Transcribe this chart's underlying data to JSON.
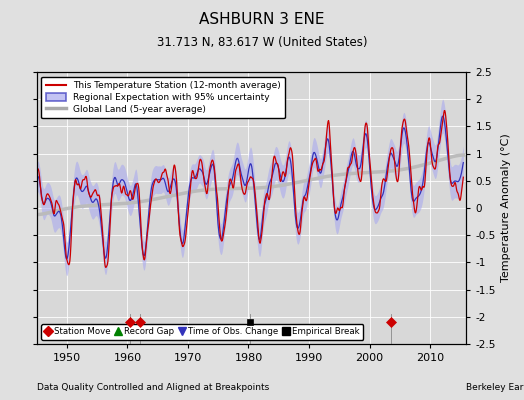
{
  "title": "ASHBURN 3 ENE",
  "subtitle": "31.713 N, 83.617 W (United States)",
  "ylabel": "Temperature Anomaly (°C)",
  "xlabel_left": "Data Quality Controlled and Aligned at Breakpoints",
  "xlabel_right": "Berkeley Earth",
  "ylim": [
    -2.5,
    2.5
  ],
  "xlim": [
    1945,
    2016
  ],
  "yticks": [
    -2.5,
    -2,
    -1.5,
    -1,
    -0.5,
    0,
    0.5,
    1,
    1.5,
    2,
    2.5
  ],
  "xticks": [
    1950,
    1960,
    1970,
    1980,
    1990,
    2000,
    2010
  ],
  "bg_color": "#e0e0e0",
  "plot_bg_color": "#d8d8d8",
  "station_moves": [
    1960.5,
    1962.0,
    2003.5
  ],
  "record_gaps": [],
  "obs_changes": [],
  "empirical_breaks": [
    1980.3
  ],
  "legend_items": [
    {
      "label": "This Temperature Station (12-month average)",
      "color": "#cc0000",
      "lw": 1.2
    },
    {
      "label": "Regional Expectation with 95% uncertainty",
      "color": "#3333bb",
      "lw": 1.2
    },
    {
      "label": "Global Land (5-year average)",
      "color": "#aaaaaa",
      "lw": 2.0
    }
  ]
}
